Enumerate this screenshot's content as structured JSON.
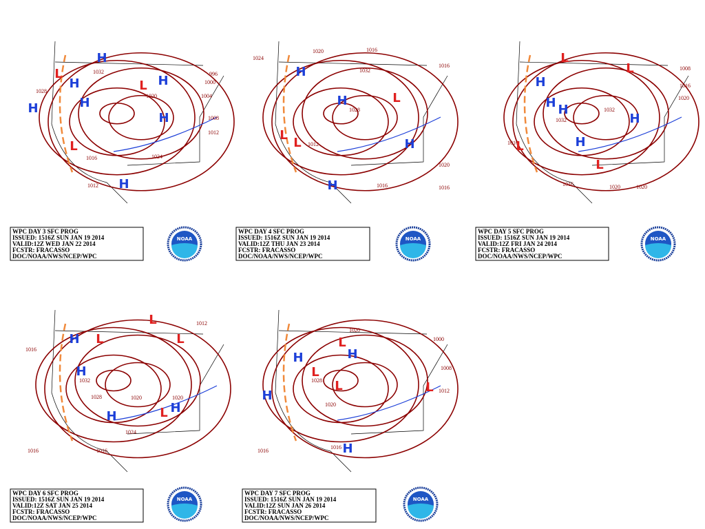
{
  "logo_text": "NOAA",
  "panels": [
    {
      "info": [
        "WPC DAY 3 SFC PROG",
        "ISSUED: 1516Z SUN JAN 19 2014",
        "VALID:12Z WED JAN 22 2014",
        "FCSTR: FRACASSO",
        "DOC/NOAA/NWS/NCEP/WPC"
      ],
      "pressure_centers": [
        "H",
        "H",
        "H",
        "H",
        "H",
        "H",
        "H",
        "L",
        "L",
        "L"
      ],
      "isobar_labels": [
        "1028",
        "1032",
        "1016",
        "1012",
        "1024",
        "1008",
        "1012",
        "1000",
        "1004",
        "996",
        "1020"
      ]
    },
    {
      "info": [
        "WPC DAY 4 SFC PROG",
        "ISSUED: 1516Z SUN JAN 19 2014",
        "VALID:12Z THU JAN 23 2014",
        "FCSTR: FRACASSO",
        "DOC/NOAA/NWS/NCEP/WPC"
      ],
      "pressure_centers": [
        "H",
        "H",
        "H",
        "H",
        "L",
        "L",
        "L"
      ],
      "isobar_labels": [
        "1020",
        "1032",
        "1028",
        "1016",
        "1016",
        "1012",
        "1016",
        "1020",
        "1016",
        "1024"
      ]
    },
    {
      "info": [
        "WPC DAY 5 SFC PROG",
        "ISSUED: 1516Z SUN JAN 19 2014",
        "VALID:12Z FRI JAN 24 2014",
        "FCSTR: FRACASSO",
        "DOC/NOAA/NWS/NCEP/WPC"
      ],
      "pressure_centers": [
        "H",
        "H",
        "H",
        "H",
        "H",
        "L",
        "L",
        "L",
        "L"
      ],
      "isobar_labels": [
        "1032",
        "1032",
        "1020",
        "1016",
        "1016",
        "1020",
        "1020",
        "1016",
        "1008"
      ]
    },
    {
      "info": [
        "WPC DAY 6 SFC PROG",
        "ISSUED: 1516Z SUN JAN 19 2014",
        "VALID:12Z SAT JAN 25 2014",
        "FCSTR: FRACASSO",
        "DOC/NOAA/NWS/NCEP/WPC"
      ],
      "pressure_centers": [
        "H",
        "H",
        "H",
        "H",
        "L",
        "L",
        "L",
        "L"
      ],
      "isobar_labels": [
        "1016",
        "1032",
        "1028",
        "1020",
        "1024",
        "1016",
        "1016",
        "1020",
        "1012"
      ]
    },
    {
      "info": [
        "WPC DAY 7 SFC PROG",
        "ISSUED: 1516Z SUN JAN 19 2014",
        "VALID:12Z SUN JAN 26 2014",
        "FCSTR: FRACASSO",
        "DOC/NOAA/NWS/NCEP/WPC"
      ],
      "pressure_centers": [
        "H",
        "H",
        "H",
        "H",
        "L",
        "L",
        "L",
        "L"
      ],
      "isobar_labels": [
        "1028",
        "1020",
        "1016",
        "1016",
        "1000",
        "1008",
        "1012",
        "1020"
      ]
    }
  ]
}
